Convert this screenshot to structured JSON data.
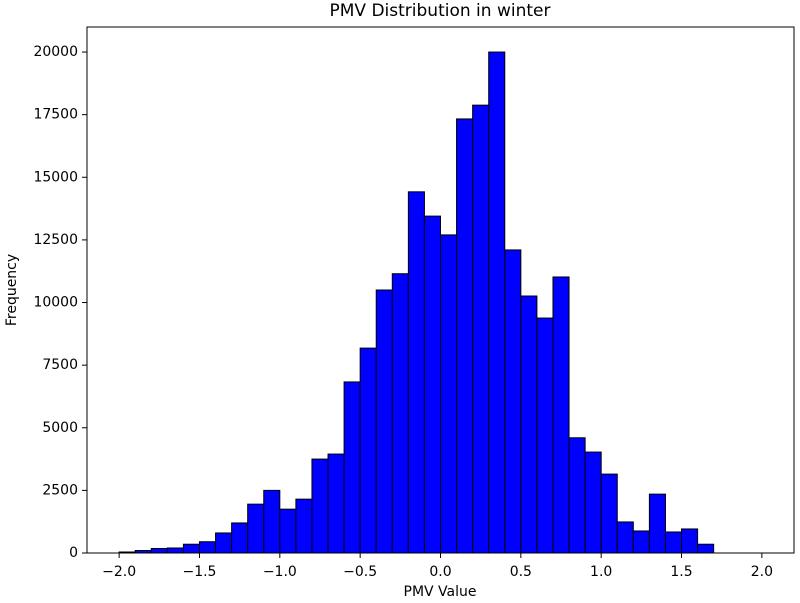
{
  "chart_data": {
    "type": "histogram",
    "title": "PMV Distribution in winter",
    "x_label": "PMV Value",
    "y_label": "Frequency",
    "bins": [
      -2.0,
      -1.9,
      -1.8,
      -1.7,
      -1.6,
      -1.5,
      -1.4,
      -1.3,
      -1.2,
      -1.1,
      -1.0,
      -0.9,
      -0.8,
      -0.7,
      -0.6,
      -0.5,
      -0.4,
      -0.3,
      -0.2,
      -0.1,
      0.0,
      0.1,
      0.2,
      0.3,
      0.4,
      0.5,
      0.6,
      0.7,
      0.8,
      0.9,
      1.0,
      1.1,
      1.2,
      1.3,
      1.4,
      1.5,
      1.6,
      1.7
    ],
    "values": [
      40,
      100,
      180,
      200,
      350,
      450,
      800,
      1200,
      1950,
      2500,
      1750,
      2150,
      3750,
      3950,
      6830,
      8180,
      10500,
      11150,
      14420,
      13450,
      12700,
      17330,
      17880,
      20000,
      12100,
      10260,
      9380,
      11020,
      4600,
      4030,
      3150,
      1240,
      880,
      2350,
      840,
      960,
      350
    ],
    "color": "#0000ff",
    "edgecolor": "#000000",
    "xlim": [
      -2.2,
      2.2
    ],
    "ylim": [
      0,
      21000
    ],
    "xticks": [
      {
        "value": -2.0,
        "label": "−2.0"
      },
      {
        "value": -1.5,
        "label": "−1.5"
      },
      {
        "value": -1.0,
        "label": "−1.0"
      },
      {
        "value": -0.5,
        "label": "−0.5"
      },
      {
        "value": 0.0,
        "label": "0.0"
      },
      {
        "value": 0.5,
        "label": "0.5"
      },
      {
        "value": 1.0,
        "label": "1.0"
      },
      {
        "value": 1.5,
        "label": "1.5"
      },
      {
        "value": 2.0,
        "label": "2.0"
      }
    ],
    "yticks": [
      0,
      2500,
      5000,
      7500,
      10000,
      12500,
      15000,
      17500,
      20000
    ]
  }
}
